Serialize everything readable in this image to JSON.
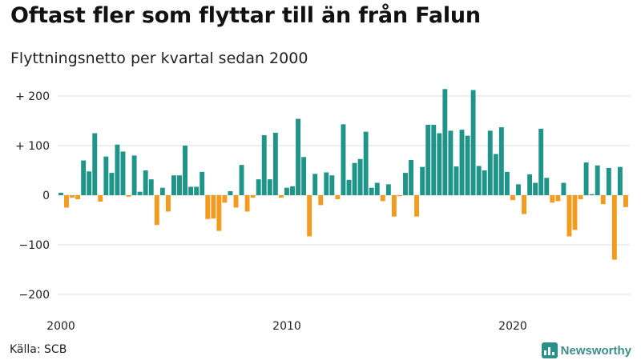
{
  "header": {
    "title": "Oftast fler som flyttar till än från Falun",
    "subtitle": "Flyttningsnetto per kvartal sedan 2000"
  },
  "footer": {
    "source": "Källa: SCB",
    "brand": "Newsworthy"
  },
  "colors": {
    "positive": "#1f9488",
    "negative": "#f29b1e",
    "grid": "#dddddd",
    "brand": "#3d8c88"
  },
  "icons": {
    "brand": "newsworthy-logo-icon"
  },
  "chart_data": {
    "type": "bar",
    "title": "Oftast fler som flyttar till än från Falun",
    "subtitle": "Flyttningsnetto per kvartal sedan 2000",
    "xlabel": "",
    "ylabel": "",
    "ylim": [
      -210,
      220
    ],
    "grid": true,
    "legend": "none",
    "y_ticks": [
      200,
      100,
      0,
      -100,
      -200
    ],
    "y_tick_labels": [
      "+ 200",
      "+ 100",
      "0",
      "−100",
      "−200"
    ],
    "x_ticks": [
      2000,
      2010,
      2020
    ],
    "x_tick_labels": [
      "2000",
      "2010",
      "2020"
    ],
    "quarters_start": "2000 Q1",
    "values": [
      5,
      -25,
      -5,
      -8,
      70,
      48,
      125,
      -13,
      78,
      45,
      102,
      88,
      -3,
      80,
      7,
      50,
      32,
      -60,
      15,
      -33,
      40,
      40,
      100,
      17,
      17,
      47,
      -48,
      -47,
      -72,
      -15,
      8,
      -25,
      61,
      -33,
      -5,
      32,
      121,
      32,
      126,
      -5,
      15,
      18,
      154,
      77,
      -83,
      43,
      -20,
      46,
      40,
      -8,
      143,
      31,
      65,
      73,
      128,
      15,
      25,
      -12,
      22,
      -43,
      -2,
      45,
      71,
      -43,
      57,
      142,
      142,
      125,
      214,
      130,
      58,
      132,
      120,
      212,
      59,
      50,
      130,
      83,
      137,
      47,
      -10,
      22,
      -38,
      42,
      25,
      134,
      35,
      -15,
      -12,
      25,
      -83,
      -70,
      -8,
      66,
      2,
      60,
      -18,
      55,
      -130,
      57,
      -24
    ]
  }
}
